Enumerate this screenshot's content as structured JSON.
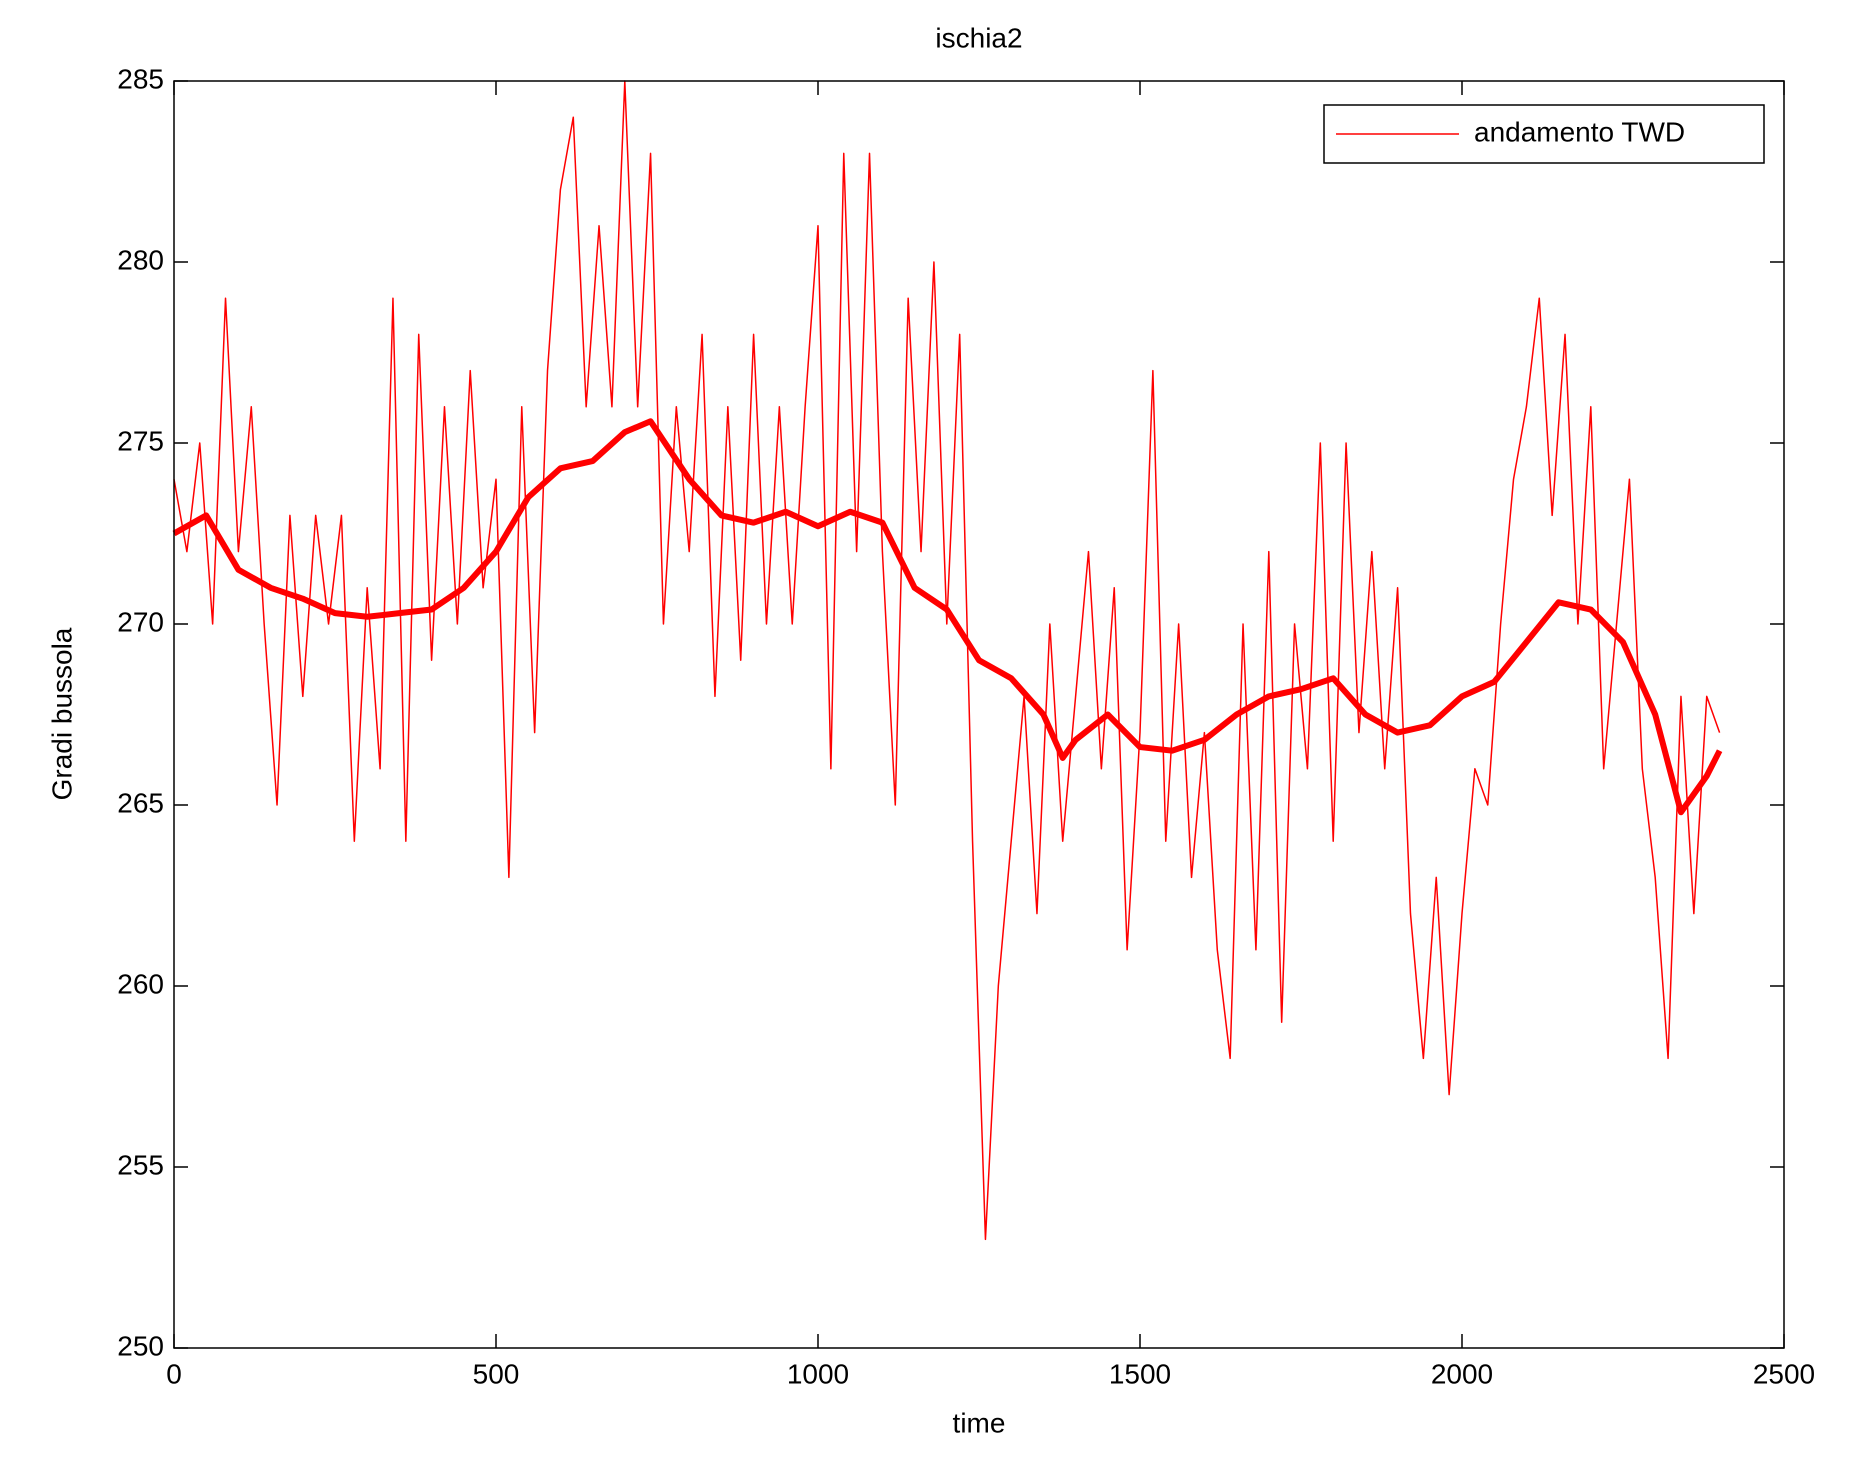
{
  "chart_data": {
    "type": "line",
    "title": "ischia2",
    "x_label": "time",
    "y_label": "Gradi bussola",
    "xlim": [
      0,
      2500
    ],
    "ylim": [
      250,
      285
    ],
    "xticks": [
      0,
      500,
      1000,
      1500,
      2000,
      2500
    ],
    "yticks": [
      250,
      255,
      260,
      265,
      270,
      275,
      280,
      285
    ],
    "grid": false,
    "legend_position": "top-right",
    "series": [
      {
        "name": "andamento TWD",
        "color": "#ff0000",
        "line_width": 1.5,
        "x": [
          0,
          20,
          40,
          60,
          80,
          100,
          120,
          140,
          160,
          180,
          200,
          220,
          240,
          260,
          280,
          300,
          320,
          340,
          360,
          380,
          400,
          420,
          440,
          460,
          480,
          500,
          520,
          540,
          560,
          580,
          600,
          620,
          640,
          660,
          680,
          700,
          720,
          740,
          760,
          780,
          800,
          820,
          840,
          860,
          880,
          900,
          920,
          940,
          960,
          980,
          1000,
          1020,
          1040,
          1060,
          1080,
          1100,
          1120,
          1140,
          1160,
          1180,
          1200,
          1220,
          1240,
          1260,
          1280,
          1300,
          1320,
          1340,
          1360,
          1380,
          1400,
          1420,
          1440,
          1460,
          1480,
          1500,
          1520,
          1540,
          1560,
          1580,
          1600,
          1620,
          1640,
          1660,
          1680,
          1700,
          1720,
          1740,
          1760,
          1780,
          1800,
          1820,
          1840,
          1860,
          1880,
          1900,
          1920,
          1940,
          1960,
          1980,
          2000,
          2020,
          2040,
          2060,
          2080,
          2100,
          2120,
          2140,
          2160,
          2180,
          2200,
          2220,
          2240,
          2260,
          2280,
          2300,
          2320,
          2340,
          2360,
          2380,
          2400
        ],
        "values": [
          274,
          272,
          275,
          270,
          279,
          272,
          276,
          270,
          265,
          273,
          268,
          273,
          270,
          273,
          264,
          271,
          266,
          279,
          264,
          278,
          269,
          276,
          270,
          277,
          271,
          274,
          263,
          276,
          267,
          277,
          282,
          284,
          276,
          281,
          276,
          285,
          276,
          283,
          270,
          276,
          272,
          278,
          268,
          276,
          269,
          278,
          270,
          276,
          270,
          276,
          281,
          266,
          283,
          272,
          283,
          272,
          265,
          279,
          272,
          280,
          270,
          278,
          264,
          253,
          260,
          264,
          268,
          262,
          270,
          264,
          268,
          272,
          266,
          271,
          261,
          267,
          277,
          264,
          270,
          263,
          267,
          261,
          258,
          270,
          261,
          272,
          259,
          270,
          266,
          275,
          264,
          275,
          267,
          272,
          266,
          271,
          262,
          258,
          263,
          257,
          262,
          266,
          265,
          270,
          274,
          276,
          279,
          273,
          278,
          270,
          276,
          266,
          270,
          274,
          266,
          263,
          258,
          268,
          262,
          268,
          267
        ]
      },
      {
        "color": "#ff0000",
        "line_width": 6,
        "x": [
          0,
          50,
          100,
          150,
          200,
          250,
          300,
          350,
          400,
          450,
          500,
          550,
          600,
          650,
          700,
          740,
          800,
          850,
          900,
          950,
          1000,
          1050,
          1100,
          1150,
          1200,
          1250,
          1300,
          1350,
          1380,
          1400,
          1450,
          1500,
          1550,
          1600,
          1650,
          1700,
          1750,
          1800,
          1850,
          1900,
          1950,
          2000,
          2050,
          2100,
          2150,
          2200,
          2250,
          2300,
          2340,
          2380,
          2400
        ],
        "values": [
          272.5,
          273,
          271.5,
          271,
          270.7,
          270.3,
          270.2,
          270.3,
          270.4,
          271,
          272,
          273.5,
          274.3,
          274.5,
          275.3,
          275.6,
          274,
          273,
          272.8,
          273.1,
          272.7,
          273.1,
          272.8,
          271,
          270.4,
          269,
          268.5,
          267.5,
          266.3,
          266.8,
          267.5,
          266.6,
          266.5,
          266.8,
          267.5,
          268,
          268.2,
          268.5,
          267.5,
          267,
          267.2,
          268,
          268.4,
          269.5,
          270.6,
          270.4,
          269.5,
          267.5,
          264.8,
          265.8,
          266.5
        ]
      }
    ]
  }
}
